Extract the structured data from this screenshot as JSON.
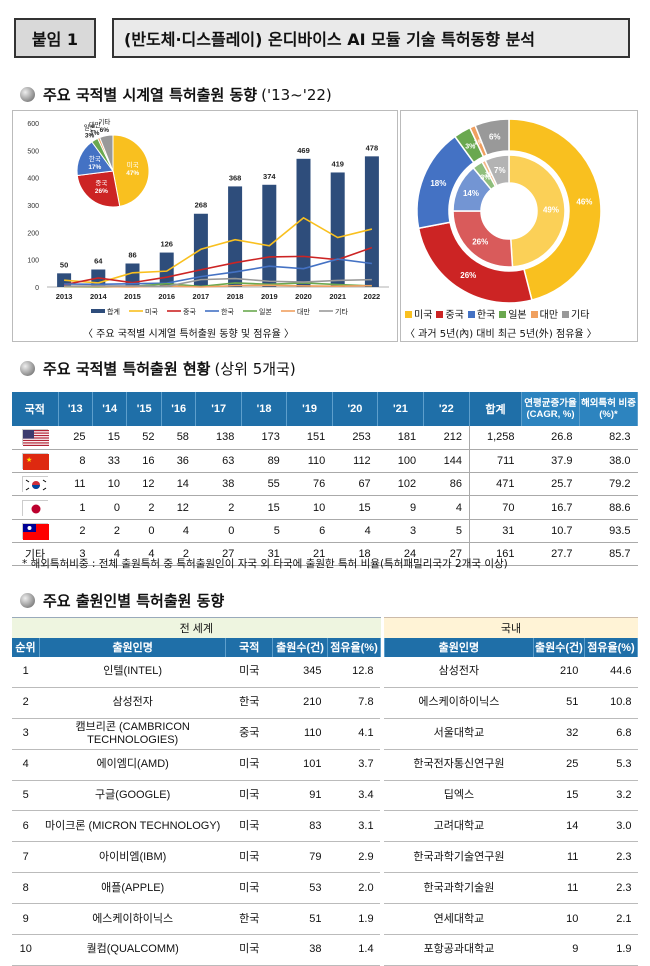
{
  "header": {
    "badge": "붙임 1",
    "title": "(반도체·디스플레이) 온디바이스 AI 모듈 기술 특허동향 분석"
  },
  "sections": {
    "s1": "주요 국적별 시계열 특허출원 동향",
    "s1_sub": "('13~'22)",
    "s2": "주요 국적별 특허출원 현황",
    "s2_sub": "(상위 5개국)",
    "s3": "주요 출원인별 특허출원 동향"
  },
  "colors": {
    "total": "#2e4d7b",
    "us": "#f9c01f",
    "cn": "#cc2424",
    "kr": "#4472c4",
    "jp": "#6aa84f",
    "tw": "#f0a060",
    "other": "#999999"
  },
  "chart_data": [
    {
      "type": "bar",
      "title": "",
      "categories": [
        "2013",
        "2014",
        "2015",
        "2016",
        "2017",
        "2018",
        "2019",
        "2020",
        "2021",
        "2022"
      ],
      "ylim": [
        0,
        600
      ],
      "yticks": [
        "0",
        "100",
        "200",
        "300",
        "400",
        "500",
        "600"
      ],
      "series": [
        {
          "name": "합계",
          "type": "bar",
          "values": [
            50,
            64,
            86,
            126,
            268,
            368,
            374,
            469,
            419,
            478
          ]
        },
        {
          "name": "미국",
          "type": "line",
          "values": [
            25,
            15,
            52,
            58,
            138,
            173,
            151,
            253,
            181,
            212
          ]
        },
        {
          "name": "중국",
          "type": "line",
          "values": [
            8,
            33,
            16,
            36,
            63,
            89,
            110,
            112,
            100,
            144
          ]
        },
        {
          "name": "한국",
          "type": "line",
          "values": [
            11,
            10,
            12,
            14,
            38,
            55,
            76,
            67,
            102,
            86
          ]
        },
        {
          "name": "일본",
          "type": "line",
          "values": [
            1,
            0,
            2,
            12,
            2,
            15,
            10,
            15,
            9,
            4
          ]
        },
        {
          "name": "대만",
          "type": "line",
          "values": [
            2,
            2,
            0,
            4,
            0,
            5,
            6,
            4,
            3,
            5
          ]
        },
        {
          "name": "기타",
          "type": "line",
          "values": [
            3,
            4,
            4,
            2,
            27,
            31,
            21,
            18,
            24,
            27
          ]
        }
      ],
      "legend": "bottom",
      "caption": "〈 주요 국적별 시계열 특허출원 동향 및 점유율 〉"
    },
    {
      "type": "pie",
      "labels": [
        "미국",
        "중국",
        "한국",
        "일본",
        "대만",
        "기타"
      ],
      "values": [
        47,
        26,
        17,
        3,
        1,
        6
      ]
    },
    {
      "type": "pie",
      "title": "outer",
      "labels": [
        "미국",
        "중국",
        "한국",
        "일본",
        "대만",
        "기타"
      ],
      "values": [
        46,
        26,
        18,
        3,
        1,
        6
      ]
    },
    {
      "type": "pie",
      "title": "inner",
      "labels": [
        "미국",
        "중국",
        "한국",
        "일본",
        "대만",
        "기타"
      ],
      "values": [
        49,
        26,
        14,
        3,
        1,
        7
      ]
    }
  ],
  "pie_small_labels": [
    {
      "name": "미국",
      "pct": "47%"
    },
    {
      "name": "중국",
      "pct": "26%"
    },
    {
      "name": "한국",
      "pct": "17%"
    },
    {
      "name": "일본",
      "pct": "3%"
    },
    {
      "name": "대만",
      "pct": "1%"
    },
    {
      "name": "기타",
      "pct": "6%"
    }
  ],
  "donut_labels": {
    "outer": [
      "46%",
      "26%",
      "18%",
      "3%",
      "1%",
      "6%"
    ],
    "inner": [
      "49%",
      "26%",
      "14%",
      "3%",
      "1%",
      "7%"
    ]
  },
  "donut_legend": [
    "미국",
    "중국",
    "한국",
    "일본",
    "대만",
    "기타"
  ],
  "donut_caption": "〈 과거 5년(內) 대비 최근 5년(外) 점유율 〉",
  "table1": {
    "headers": [
      "국적",
      "'13",
      "'14",
      "'15",
      "'16",
      "'17",
      "'18",
      "'19",
      "'20",
      "'21",
      "'22",
      "합계",
      "연평균증가율 (CAGR, %)",
      "해외특허 비중(%)*"
    ],
    "rows": [
      {
        "flag": "us",
        "cells": [
          "25",
          "15",
          "52",
          "58",
          "138",
          "173",
          "151",
          "253",
          "181",
          "212",
          "1,258",
          "26.8",
          "82.3"
        ]
      },
      {
        "flag": "cn",
        "cells": [
          "8",
          "33",
          "16",
          "36",
          "63",
          "89",
          "110",
          "112",
          "100",
          "144",
          "711",
          "37.9",
          "38.0"
        ]
      },
      {
        "flag": "kr",
        "cells": [
          "11",
          "10",
          "12",
          "14",
          "38",
          "55",
          "76",
          "67",
          "102",
          "86",
          "471",
          "25.7",
          "79.2"
        ]
      },
      {
        "flag": "jp",
        "cells": [
          "1",
          "0",
          "2",
          "12",
          "2",
          "15",
          "10",
          "15",
          "9",
          "4",
          "70",
          "16.7",
          "88.6"
        ]
      },
      {
        "flag": "tw",
        "cells": [
          "2",
          "2",
          "0",
          "4",
          "0",
          "5",
          "6",
          "4",
          "3",
          "5",
          "31",
          "10.7",
          "93.5"
        ]
      },
      {
        "flag": "",
        "label": "기타",
        "cells": [
          "3",
          "4",
          "4",
          "2",
          "27",
          "31",
          "21",
          "18",
          "24",
          "27",
          "161",
          "27.7",
          "85.7"
        ]
      }
    ]
  },
  "note": "* 해외특허비중 : 전체 출원특허 중 특허출원인이 자국 외 타국에 출원한 특허 비율(특허패밀리국가 2개국 이상)",
  "table2": {
    "group_world": "전 세계",
    "group_domestic": "국내",
    "headers_world": [
      "순위",
      "출원인명",
      "국적",
      "출원수(건)",
      "점유율(%)"
    ],
    "headers_dom": [
      "출원인명",
      "출원수(건)",
      "점유율(%)"
    ],
    "rows": [
      [
        "1",
        "인텔(INTEL)",
        "미국",
        "345",
        "12.8",
        "삼성전자",
        "210",
        "44.6"
      ],
      [
        "2",
        "삼성전자",
        "한국",
        "210",
        "7.8",
        "에스케이하이닉스",
        "51",
        "10.8"
      ],
      [
        "3",
        "캠브리콘 (CAMBRICON TECHNOLOGIES)",
        "중국",
        "110",
        "4.1",
        "서울대학교",
        "32",
        "6.8"
      ],
      [
        "4",
        "에이엠디(AMD)",
        "미국",
        "101",
        "3.7",
        "한국전자통신연구원",
        "25",
        "5.3"
      ],
      [
        "5",
        "구글(GOOGLE)",
        "미국",
        "91",
        "3.4",
        "딥엑스",
        "15",
        "3.2"
      ],
      [
        "6",
        "마이크론 (MICRON TECHNOLOGY)",
        "미국",
        "83",
        "3.1",
        "고려대학교",
        "14",
        "3.0"
      ],
      [
        "7",
        "아이비엠(IBM)",
        "미국",
        "79",
        "2.9",
        "한국과학기술연구원",
        "11",
        "2.3"
      ],
      [
        "8",
        "애플(APPLE)",
        "미국",
        "53",
        "2.0",
        "한국과학기술원",
        "11",
        "2.3"
      ],
      [
        "9",
        "에스케이하이닉스",
        "한국",
        "51",
        "1.9",
        "연세대학교",
        "10",
        "2.1"
      ],
      [
        "10",
        "퀄컴(QUALCOMM)",
        "미국",
        "38",
        "1.4",
        "포항공과대학교",
        "9",
        "1.9"
      ]
    ]
  }
}
